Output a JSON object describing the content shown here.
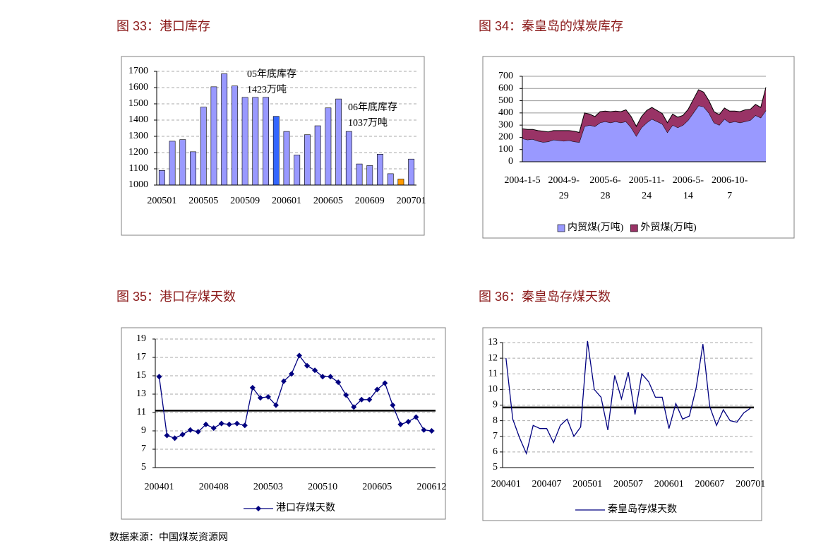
{
  "chart_data": [
    {
      "type": "bar",
      "title": "图 33：港口库存",
      "categories": [
        "200501",
        null,
        null,
        null,
        "200505",
        null,
        null,
        null,
        "200509",
        null,
        null,
        null,
        "200601",
        null,
        null,
        null,
        "200605",
        null,
        null,
        null,
        "200609",
        null,
        null,
        null,
        "200701"
      ],
      "series": [
        {
          "values": [
            1090,
            1270,
            1280,
            1205,
            1480,
            1605,
            1685,
            1610,
            1540,
            1540,
            1540,
            1423,
            1330,
            1185,
            1310,
            1365,
            1475,
            1530,
            1330,
            1130,
            1120,
            1190,
            1070,
            1037,
            1160
          ],
          "colors": [
            "#9999ff",
            "#9999ff",
            "#9999ff",
            "#9999ff",
            "#9999ff",
            "#9999ff",
            "#9999ff",
            "#9999ff",
            "#9999ff",
            "#9999ff",
            "#9999ff",
            "#3366ff",
            "#9999ff",
            "#9999ff",
            "#9999ff",
            "#9999ff",
            "#9999ff",
            "#9999ff",
            "#9999ff",
            "#9999ff",
            "#9999ff",
            "#9999ff",
            "#9999ff",
            "#ff9900",
            "#9999ff"
          ]
        }
      ],
      "annotations": [
        [
          "05年底库存",
          "1423万吨"
        ],
        [
          "06年底库存",
          "1037万吨"
        ]
      ],
      "ylim": [
        1000,
        1700
      ],
      "yticks": [
        1000,
        1100,
        1200,
        1300,
        1400,
        1500,
        1600,
        1700
      ],
      "grid": true
    },
    {
      "type": "area",
      "title": "图 34：秦皇岛的煤炭库存",
      "categories": [
        "2004-1-5",
        null,
        null,
        null,
        null,
        null,
        null,
        null,
        "2004-9-29",
        null,
        null,
        null,
        null,
        null,
        null,
        null,
        "2005-6-28",
        null,
        null,
        null,
        null,
        null,
        null,
        null,
        "2005-11-24",
        null,
        null,
        null,
        null,
        null,
        null,
        null,
        "2006-5-14",
        null,
        null,
        null,
        null,
        null,
        null,
        null,
        "2006-10-7",
        null,
        null,
        null,
        null,
        null,
        null,
        null
      ],
      "series": [
        {
          "name": "内贸煤(万吨)",
          "color": "#9999ff",
          "values": [
            190,
            180,
            185,
            170,
            160,
            165,
            180,
            175,
            170,
            175,
            165,
            160,
            290,
            300,
            290,
            320,
            330,
            320,
            330,
            320,
            330,
            280,
            210,
            280,
            320,
            350,
            330,
            310,
            240,
            300,
            280,
            300,
            340,
            400,
            460,
            450,
            400,
            320,
            300,
            350,
            320,
            330,
            320,
            330,
            340,
            380,
            360,
            420
          ]
        },
        {
          "name": "外贸煤(万吨)",
          "color": "#993366",
          "values": [
            80,
            85,
            80,
            85,
            90,
            80,
            75,
            80,
            85,
            80,
            85,
            80,
            110,
            90,
            80,
            90,
            85,
            90,
            85,
            90,
            95,
            90,
            80,
            90,
            100,
            95,
            90,
            85,
            80,
            90,
            85,
            80,
            90,
            110,
            130,
            120,
            100,
            90,
            85,
            90,
            95,
            85,
            90,
            95,
            90,
            90,
            85,
            190
          ]
        }
      ],
      "ylim": [
        0,
        700
      ],
      "yticks": [
        0,
        100,
        200,
        300,
        400,
        500,
        600,
        700
      ],
      "grid": true
    },
    {
      "type": "line",
      "title": "图 35：港口存煤天数",
      "categories": [
        "200401",
        null,
        null,
        null,
        null,
        null,
        null,
        "200408",
        null,
        null,
        null,
        null,
        null,
        null,
        "200503",
        null,
        null,
        null,
        null,
        null,
        null,
        "200510",
        null,
        null,
        null,
        null,
        null,
        null,
        "200605",
        null,
        null,
        null,
        null,
        null,
        null,
        "200612"
      ],
      "series": [
        {
          "name": "港口存煤天数",
          "color": "#000080",
          "values": [
            14.9,
            8.5,
            8.2,
            8.6,
            9.1,
            8.9,
            9.7,
            9.3,
            9.8,
            9.7,
            9.8,
            9.6,
            13.7,
            12.6,
            12.7,
            11.8,
            14.4,
            15.2,
            17.2,
            16.1,
            15.6,
            14.9,
            14.9,
            14.3,
            12.9,
            11.6,
            12.4,
            12.4,
            13.5,
            14.2,
            11.8,
            9.7,
            10.0,
            10.5,
            9.1,
            9.0
          ]
        }
      ],
      "markers": "diamond",
      "hline": 11.2,
      "ylim": [
        5,
        19
      ],
      "yticks": [
        5,
        7,
        9,
        11,
        13,
        15,
        17,
        19
      ],
      "grid": true
    },
    {
      "type": "line",
      "title": "图 36：秦皇岛存煤天数",
      "categories": [
        "200401",
        null,
        null,
        null,
        null,
        null,
        "200407",
        null,
        null,
        null,
        null,
        null,
        "200501",
        null,
        null,
        null,
        null,
        null,
        "200507",
        null,
        null,
        null,
        null,
        null,
        "200601",
        null,
        null,
        null,
        null,
        null,
        "200607",
        null,
        null,
        null,
        null,
        null,
        "200701"
      ],
      "series": [
        {
          "name": "秦皇岛存煤天数",
          "color": "#000080",
          "values": [
            12.0,
            8.1,
            6.9,
            5.9,
            7.7,
            7.5,
            7.5,
            6.6,
            7.7,
            8.1,
            7.0,
            7.6,
            13.1,
            10.0,
            9.5,
            7.4,
            10.9,
            9.4,
            11.1,
            8.4,
            11.0,
            10.5,
            9.5,
            9.5,
            7.5,
            9.1,
            8.1,
            8.3,
            10.1,
            12.9,
            8.9,
            7.7,
            8.7,
            8.0,
            7.9,
            8.5,
            8.8
          ]
        }
      ],
      "hline": 8.85,
      "ylim": [
        5,
        13
      ],
      "yticks": [
        5,
        6,
        7,
        8,
        9,
        10,
        11,
        12,
        13
      ],
      "grid": true
    }
  ],
  "source": "数据来源：中国煤炭资源网"
}
